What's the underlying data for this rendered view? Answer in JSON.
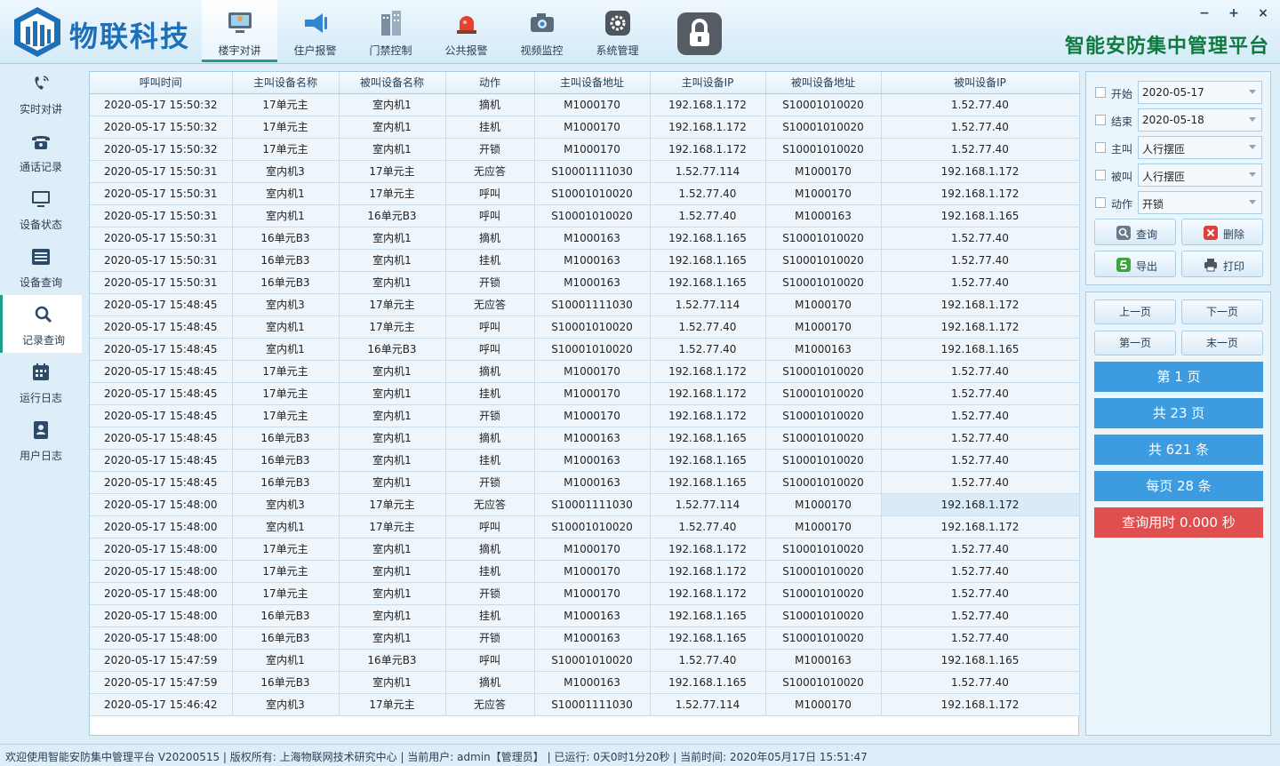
{
  "brand": {
    "name": "物联科技",
    "platform_title": "智能安防集中管理平台"
  },
  "colors": {
    "accent": "#1c9e8b",
    "brand": "#1d6fb8",
    "platform": "#0e7a3e",
    "info": "#3d9be0",
    "danger": "#e04f4f"
  },
  "window_controls": {
    "minimize": "−",
    "maximize": "+",
    "close": "×"
  },
  "topnav": [
    {
      "label": "楼宇对讲",
      "icon": "monitor-icon"
    },
    {
      "label": "住户报警",
      "icon": "megaphone-icon"
    },
    {
      "label": "门禁控制",
      "icon": "building-icon"
    },
    {
      "label": "公共报警",
      "icon": "alarm-light-icon"
    },
    {
      "label": "视频监控",
      "icon": "camera-icon"
    },
    {
      "label": "系统管理",
      "icon": "gear-icon"
    }
  ],
  "lock_icon": "lock-icon",
  "sidebar": [
    {
      "label": "实时对讲",
      "icon": "phone-ring-icon"
    },
    {
      "label": "通话记录",
      "icon": "telephone-icon"
    },
    {
      "label": "设备状态",
      "icon": "monitor-icon"
    },
    {
      "label": "设备查询",
      "icon": "list-icon"
    },
    {
      "label": "记录查询",
      "icon": "search-icon"
    },
    {
      "label": "运行日志",
      "icon": "calendar-icon"
    },
    {
      "label": "用户日志",
      "icon": "user-card-icon"
    }
  ],
  "table": {
    "headers": [
      "呼叫时间",
      "主叫设备名称",
      "被叫设备名称",
      "动作",
      "主叫设备地址",
      "主叫设备IP",
      "被叫设备地址",
      "被叫设备IP"
    ],
    "rows": [
      [
        "2020-05-17 15:50:32",
        "17单元主",
        "室内机1",
        "摘机",
        "M1000170",
        "192.168.1.172",
        "S10001010020",
        "1.52.77.40"
      ],
      [
        "2020-05-17 15:50:32",
        "17单元主",
        "室内机1",
        "挂机",
        "M1000170",
        "192.168.1.172",
        "S10001010020",
        "1.52.77.40"
      ],
      [
        "2020-05-17 15:50:32",
        "17单元主",
        "室内机1",
        "开锁",
        "M1000170",
        "192.168.1.172",
        "S10001010020",
        "1.52.77.40"
      ],
      [
        "2020-05-17 15:50:31",
        "室内机3",
        "17单元主",
        "无应答",
        "S10001111030",
        "1.52.77.114",
        "M1000170",
        "192.168.1.172"
      ],
      [
        "2020-05-17 15:50:31",
        "室内机1",
        "17单元主",
        "呼叫",
        "S10001010020",
        "1.52.77.40",
        "M1000170",
        "192.168.1.172"
      ],
      [
        "2020-05-17 15:50:31",
        "室内机1",
        "16单元B3",
        "呼叫",
        "S10001010020",
        "1.52.77.40",
        "M1000163",
        "192.168.1.165"
      ],
      [
        "2020-05-17 15:50:31",
        "16单元B3",
        "室内机1",
        "摘机",
        "M1000163",
        "192.168.1.165",
        "S10001010020",
        "1.52.77.40"
      ],
      [
        "2020-05-17 15:50:31",
        "16单元B3",
        "室内机1",
        "挂机",
        "M1000163",
        "192.168.1.165",
        "S10001010020",
        "1.52.77.40"
      ],
      [
        "2020-05-17 15:50:31",
        "16单元B3",
        "室内机1",
        "开锁",
        "M1000163",
        "192.168.1.165",
        "S10001010020",
        "1.52.77.40"
      ],
      [
        "2020-05-17 15:48:45",
        "室内机3",
        "17单元主",
        "无应答",
        "S10001111030",
        "1.52.77.114",
        "M1000170",
        "192.168.1.172"
      ],
      [
        "2020-05-17 15:48:45",
        "室内机1",
        "17单元主",
        "呼叫",
        "S10001010020",
        "1.52.77.40",
        "M1000170",
        "192.168.1.172"
      ],
      [
        "2020-05-17 15:48:45",
        "室内机1",
        "16单元B3",
        "呼叫",
        "S10001010020",
        "1.52.77.40",
        "M1000163",
        "192.168.1.165"
      ],
      [
        "2020-05-17 15:48:45",
        "17单元主",
        "室内机1",
        "摘机",
        "M1000170",
        "192.168.1.172",
        "S10001010020",
        "1.52.77.40"
      ],
      [
        "2020-05-17 15:48:45",
        "17单元主",
        "室内机1",
        "挂机",
        "M1000170",
        "192.168.1.172",
        "S10001010020",
        "1.52.77.40"
      ],
      [
        "2020-05-17 15:48:45",
        "17单元主",
        "室内机1",
        "开锁",
        "M1000170",
        "192.168.1.172",
        "S10001010020",
        "1.52.77.40"
      ],
      [
        "2020-05-17 15:48:45",
        "16单元B3",
        "室内机1",
        "摘机",
        "M1000163",
        "192.168.1.165",
        "S10001010020",
        "1.52.77.40"
      ],
      [
        "2020-05-17 15:48:45",
        "16单元B3",
        "室内机1",
        "挂机",
        "M1000163",
        "192.168.1.165",
        "S10001010020",
        "1.52.77.40"
      ],
      [
        "2020-05-17 15:48:45",
        "16单元B3",
        "室内机1",
        "开锁",
        "M1000163",
        "192.168.1.165",
        "S10001010020",
        "1.52.77.40"
      ],
      [
        "2020-05-17 15:48:00",
        "室内机3",
        "17单元主",
        "无应答",
        "S10001111030",
        "1.52.77.114",
        "M1000170",
        "192.168.1.172"
      ],
      [
        "2020-05-17 15:48:00",
        "室内机1",
        "17单元主",
        "呼叫",
        "S10001010020",
        "1.52.77.40",
        "M1000170",
        "192.168.1.172"
      ],
      [
        "2020-05-17 15:48:00",
        "17单元主",
        "室内机1",
        "摘机",
        "M1000170",
        "192.168.1.172",
        "S10001010020",
        "1.52.77.40"
      ],
      [
        "2020-05-17 15:48:00",
        "17单元主",
        "室内机1",
        "挂机",
        "M1000170",
        "192.168.1.172",
        "S10001010020",
        "1.52.77.40"
      ],
      [
        "2020-05-17 15:48:00",
        "17单元主",
        "室内机1",
        "开锁",
        "M1000170",
        "192.168.1.172",
        "S10001010020",
        "1.52.77.40"
      ],
      [
        "2020-05-17 15:48:00",
        "16单元B3",
        "室内机1",
        "挂机",
        "M1000163",
        "192.168.1.165",
        "S10001010020",
        "1.52.77.40"
      ],
      [
        "2020-05-17 15:48:00",
        "16单元B3",
        "室内机1",
        "开锁",
        "M1000163",
        "192.168.1.165",
        "S10001010020",
        "1.52.77.40"
      ],
      [
        "2020-05-17 15:47:59",
        "室内机1",
        "16单元B3",
        "呼叫",
        "S10001010020",
        "1.52.77.40",
        "M1000163",
        "192.168.1.165"
      ],
      [
        "2020-05-17 15:47:59",
        "16单元B3",
        "室内机1",
        "摘机",
        "M1000163",
        "192.168.1.165",
        "S10001010020",
        "1.52.77.40"
      ],
      [
        "2020-05-17 15:46:42",
        "室内机3",
        "17单元主",
        "无应答",
        "S10001111030",
        "1.52.77.114",
        "M1000170",
        "192.168.1.172"
      ]
    ]
  },
  "filters": [
    {
      "label": "开始",
      "value": "2020-05-17"
    },
    {
      "label": "结束",
      "value": "2020-05-18"
    },
    {
      "label": "主叫",
      "value": "人行摆匝"
    },
    {
      "label": "被叫",
      "value": "人行摆匝"
    },
    {
      "label": "动作",
      "value": "开锁"
    }
  ],
  "actions": [
    {
      "label": "查询",
      "icon": "search-icon",
      "color": "#6a7c8c"
    },
    {
      "label": "删除",
      "icon": "delete-icon",
      "color": "#e0403c"
    },
    {
      "label": "导出",
      "icon": "export-icon",
      "color": "#3aa53a"
    },
    {
      "label": "打印",
      "icon": "printer-icon",
      "color": "#4a5560"
    }
  ],
  "pager": {
    "prev": "上一页",
    "next": "下一页",
    "first": "第一页",
    "last": "末一页",
    "current": "第 1 页",
    "total_pages": "共 23 页",
    "total_records": "共 621 条",
    "per_page": "每页 28 条",
    "query_time": "查询用时 0.000 秒"
  },
  "statusbar": "欢迎使用智能安防集中管理平台 V20200515 | 版权所有: 上海物联网技术研究中心 | 当前用户: admin【管理员】 | 已运行: 0天0时1分20秒 | 当前时间: 2020年05月17日 15:51:47"
}
